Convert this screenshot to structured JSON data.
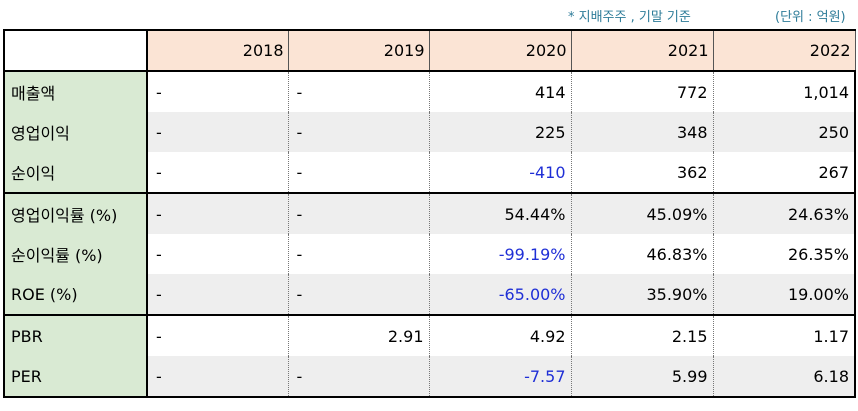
{
  "notes": {
    "basis": "* 지배주주 , 기말 기준",
    "unit": "(단위 : 억원)"
  },
  "table": {
    "years": [
      "2018",
      "2019",
      "2020",
      "2021",
      "2022"
    ],
    "rows": [
      {
        "label": "매출액",
        "values": [
          "-",
          "-",
          "414",
          "772",
          "1,014"
        ]
      },
      {
        "label": "영업이익",
        "values": [
          "-",
          "-",
          "225",
          "348",
          "250"
        ]
      },
      {
        "label": "순이익",
        "values": [
          "-",
          "-",
          "-410",
          "362",
          "267"
        ]
      },
      {
        "label": "영업이익률 (%)",
        "values": [
          "-",
          "-",
          "54.44%",
          "45.09%",
          "24.63%"
        ]
      },
      {
        "label": "순이익률 (%)",
        "values": [
          "-",
          "-",
          "-99.19%",
          "46.83%",
          "26.35%"
        ]
      },
      {
        "label": "ROE (%)",
        "values": [
          "-",
          "-",
          "-65.00%",
          "35.90%",
          "19.00%"
        ]
      },
      {
        "label": "PBR",
        "values": [
          "-",
          "2.91",
          "4.92",
          "2.15",
          "1.17"
        ]
      },
      {
        "label": "PER",
        "values": [
          "-",
          "-",
          "-7.57",
          "5.99",
          "6.18"
        ]
      }
    ]
  },
  "colors": {
    "negative": "#1f2fd6",
    "header_bg": "#fbe4d5",
    "label_bg": "#d9ead3",
    "alt_row_bg": "#eeeeee",
    "note": "#2e7c99"
  }
}
